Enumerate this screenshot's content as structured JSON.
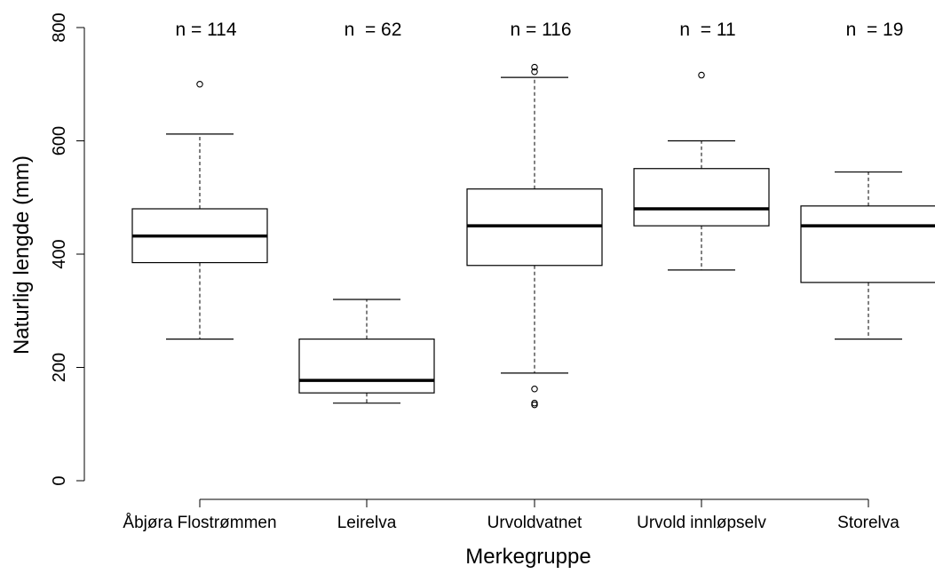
{
  "chart_data": {
    "type": "boxplot",
    "title": "",
    "xlabel": "Merkegruppe",
    "ylabel": "Naturlig lengde (mm)",
    "ylim": [
      0,
      800
    ],
    "yticks": [
      0,
      200,
      400,
      600,
      800
    ],
    "ytick_labels": [
      "0",
      "200",
      "400",
      "600",
      "800"
    ],
    "grid": false,
    "categories": [
      "Åbjøra Flostrømmen",
      "Leirelva",
      "Urvoldvatnet",
      "Urvold innløpselv",
      "Storelva"
    ],
    "n_labels": [
      "n = 114",
      "n  = 62",
      "n = 116",
      "n  = 11",
      "n  = 19"
    ],
    "boxes": [
      {
        "whisker_low": 250,
        "q1": 385,
        "median": 432,
        "q3": 480,
        "whisker_high": 612,
        "outliers": [
          700
        ]
      },
      {
        "whisker_low": 137,
        "q1": 155,
        "median": 177,
        "q3": 250,
        "whisker_high": 320,
        "outliers": []
      },
      {
        "whisker_low": 190,
        "q1": 380,
        "median": 450,
        "q3": 515,
        "whisker_high": 712,
        "outliers": [
          162,
          137,
          134,
          722,
          730
        ]
      },
      {
        "whisker_low": 372,
        "q1": 450,
        "median": 480,
        "q3": 551,
        "whisker_high": 600,
        "outliers": [
          716
        ]
      },
      {
        "whisker_low": 250,
        "q1": 350,
        "median": 450,
        "q3": 485,
        "whisker_high": 545,
        "outliers": []
      }
    ]
  }
}
